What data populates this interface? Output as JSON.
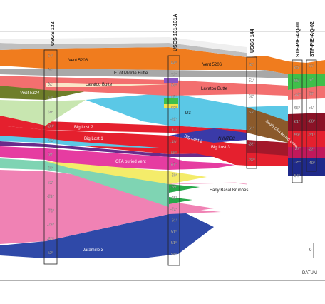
{
  "wells": [
    {
      "name": "USGS 132",
      "values": [
        "64°",
        "84°",
        "82°",
        "54°",
        "68°",
        "-38°",
        "-42°",
        "59°",
        "66°",
        "62°",
        "-59°",
        "-72°",
        "-73°",
        "-64°",
        "52°"
      ]
    },
    {
      "name": "USGS 131-131A",
      "values": [
        "64°",
        "61°",
        "54°",
        "65°",
        "60°",
        "-35°",
        "-44°",
        "-45°",
        "66°",
        "67°",
        "-69°",
        "-59°",
        "-65°",
        "-72°",
        "-61°",
        "51°",
        "51°",
        "54°"
      ]
    },
    {
      "name": "USGS 144",
      "values": [
        "62°",
        "51°",
        "62°",
        "63°",
        "61°",
        "-32°",
        "-32°"
      ]
    },
    {
      "name": "STF-PIE-AQ-01",
      "values": [
        "65°",
        "55°",
        "-33°",
        "65°",
        "61°",
        "59°",
        "-37°",
        "-35°",
        "54°"
      ]
    },
    {
      "name": "STF-PIE-AQ-02",
      "values": [
        "55°",
        "52°",
        "56°",
        "51°",
        "-60°",
        "-31°",
        "-32°",
        "-40°"
      ]
    }
  ],
  "units": [
    {
      "label": "Vent 5206",
      "color": "#f07c1e"
    },
    {
      "label": "Vent 5206",
      "color": "#f07c1e"
    },
    {
      "label": "E. of Middle Butte",
      "color": "#a8a8a8"
    },
    {
      "label": "Lavatoo Butte",
      "color": "#f36f6f"
    },
    {
      "label": "Lavatoo Butte",
      "color": "#f36f6f"
    },
    {
      "label": "Vent 5324",
      "color": "#6f7e2a"
    },
    {
      "label": "D3",
      "color": "#5bc8e6"
    },
    {
      "label": "Big Lost 2",
      "color": "#e5202e"
    },
    {
      "label": "Big Lost 1",
      "color": "#e5202e"
    },
    {
      "label": "Big Lost 2",
      "color": "#e5202e"
    },
    {
      "label": "N INTEC",
      "color": "#3a3aa8"
    },
    {
      "label": "Big Lost 3",
      "color": "#e5202e"
    },
    {
      "label": "South CFA buried vents",
      "color": "#8b5a2b"
    },
    {
      "label": "CFA buried vent",
      "color": "#e63ca1"
    },
    {
      "label": "Early Basal Brunhes",
      "color": "#7fd4b3"
    },
    {
      "label": "Jaramillo 3",
      "color": "#2f49a8"
    }
  ],
  "scale": {
    "tick": "0"
  },
  "datum": "DATUM I"
}
